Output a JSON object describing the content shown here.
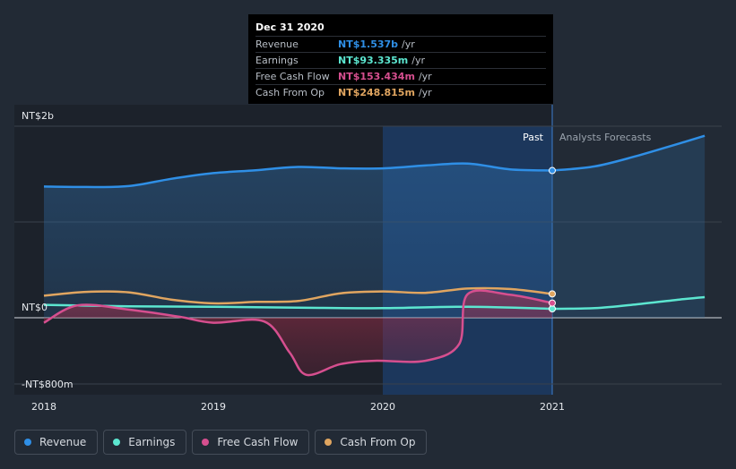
{
  "chart_data": {
    "type": "area",
    "y_unit": "NT$ millions",
    "x_range": [
      2018.0,
      2021.9
    ],
    "y_range": [
      -800,
      2000
    ],
    "y_tick_labels": [
      {
        "value": 2000,
        "label": "NT$2b"
      },
      {
        "value": 0,
        "label": "NT$0"
      },
      {
        "value": -800,
        "label": "-NT$800m"
      }
    ],
    "x_ticks": [
      {
        "value": 2018,
        "label": "2018"
      },
      {
        "value": 2019,
        "label": "2019"
      },
      {
        "value": 2020,
        "label": "2020"
      },
      {
        "value": 2021,
        "label": "2021"
      }
    ],
    "past_label": "Past",
    "forecast_label": "Analysts Forecasts",
    "past_end": 2021.0,
    "highlight_start": 2020.0,
    "series": [
      {
        "name": "Revenue",
        "color": "#2f8fe6",
        "fill": true,
        "points": [
          [
            2018.0,
            1370
          ],
          [
            2018.25,
            1365
          ],
          [
            2018.5,
            1375
          ],
          [
            2018.75,
            1450
          ],
          [
            2019.0,
            1510
          ],
          [
            2019.25,
            1540
          ],
          [
            2019.5,
            1575
          ],
          [
            2019.75,
            1560
          ],
          [
            2020.0,
            1560
          ],
          [
            2020.25,
            1590
          ],
          [
            2020.5,
            1610
          ],
          [
            2020.75,
            1550
          ],
          [
            2021.0,
            1537
          ]
        ],
        "forecast": [
          [
            2021.0,
            1537
          ],
          [
            2021.25,
            1580
          ],
          [
            2021.5,
            1690
          ],
          [
            2021.75,
            1820
          ],
          [
            2021.9,
            1900
          ]
        ]
      },
      {
        "name": "Earnings",
        "color": "#5ce6d0",
        "fill": false,
        "points": [
          [
            2018.0,
            135
          ],
          [
            2018.5,
            120
          ],
          [
            2019.0,
            115
          ],
          [
            2019.5,
            105
          ],
          [
            2020.0,
            100
          ],
          [
            2020.5,
            115
          ],
          [
            2021.0,
            93.335
          ]
        ],
        "forecast": [
          [
            2021.0,
            93.335
          ],
          [
            2021.25,
            100
          ],
          [
            2021.5,
            140
          ],
          [
            2021.75,
            190
          ],
          [
            2021.9,
            215
          ]
        ]
      },
      {
        "name": "Free Cash Flow",
        "color": "#d64f8f",
        "fill": true,
        "points": [
          [
            2018.0,
            -60
          ],
          [
            2018.2,
            130
          ],
          [
            2018.5,
            85
          ],
          [
            2018.8,
            10
          ],
          [
            2019.0,
            -60
          ],
          [
            2019.3,
            -45
          ],
          [
            2019.45,
            -420
          ],
          [
            2019.55,
            -690
          ],
          [
            2019.75,
            -560
          ],
          [
            2019.95,
            -520
          ],
          [
            2020.25,
            -520
          ],
          [
            2020.45,
            -320
          ],
          [
            2020.5,
            245
          ],
          [
            2020.75,
            240
          ],
          [
            2021.0,
            153.434
          ]
        ],
        "forecast": []
      },
      {
        "name": "Cash From Op",
        "color": "#e0a560",
        "fill": false,
        "points": [
          [
            2018.0,
            230
          ],
          [
            2018.25,
            270
          ],
          [
            2018.5,
            265
          ],
          [
            2018.75,
            190
          ],
          [
            2019.0,
            150
          ],
          [
            2019.25,
            165
          ],
          [
            2019.5,
            175
          ],
          [
            2019.75,
            255
          ],
          [
            2020.0,
            275
          ],
          [
            2020.25,
            260
          ],
          [
            2020.5,
            305
          ],
          [
            2020.75,
            300
          ],
          [
            2021.0,
            248.815
          ]
        ],
        "forecast": []
      }
    ]
  },
  "tooltip": {
    "date": "Dec 31 2020",
    "rows": [
      {
        "label": "Revenue",
        "value": "NT$1.537b",
        "unit": "/yr",
        "color": "#2f8fe6"
      },
      {
        "label": "Earnings",
        "value": "NT$93.335m",
        "unit": "/yr",
        "color": "#5ce6d0"
      },
      {
        "label": "Free Cash Flow",
        "value": "NT$153.434m",
        "unit": "/yr",
        "color": "#d64f8f"
      },
      {
        "label": "Cash From Op",
        "value": "NT$248.815m",
        "unit": "/yr",
        "color": "#e0a560"
      }
    ]
  },
  "legend": [
    {
      "label": "Revenue",
      "color": "#2f8fe6"
    },
    {
      "label": "Earnings",
      "color": "#5ce6d0"
    },
    {
      "label": "Free Cash Flow",
      "color": "#d64f8f"
    },
    {
      "label": "Cash From Op",
      "color": "#e0a560"
    }
  ]
}
